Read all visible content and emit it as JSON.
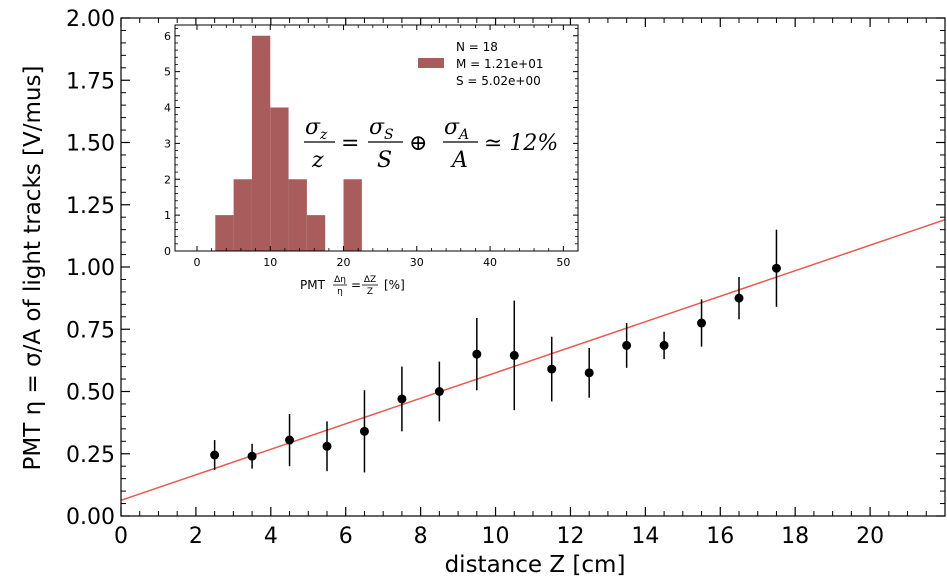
{
  "chart_data": [
    {
      "type": "scatter",
      "xlabel": "distance Z [cm]",
      "ylabel": "PMT η = σ/A of light tracks [V/mus]",
      "xlim": [
        0,
        22
      ],
      "ylim": [
        0,
        2.0
      ],
      "x_ticks": [
        "0",
        "2",
        "4",
        "6",
        "8",
        "10",
        "12",
        "14",
        "16",
        "18",
        "20"
      ],
      "y_ticks": [
        "0.00",
        "0.25",
        "0.50",
        "0.75",
        "1.00",
        "1.25",
        "1.50",
        "1.75",
        "2.00"
      ],
      "grid": false,
      "points": {
        "x": [
          2.5,
          3.5,
          4.5,
          5.5,
          6.5,
          7.5,
          8.5,
          9.5,
          10.5,
          11.5,
          12.5,
          13.5,
          14.5,
          15.5,
          16.5,
          17.5
        ],
        "y": [
          0.245,
          0.24,
          0.305,
          0.28,
          0.34,
          0.47,
          0.5,
          0.65,
          0.645,
          0.59,
          0.575,
          0.685,
          0.685,
          0.775,
          0.875,
          0.995
        ],
        "yerr": [
          0.06,
          0.05,
          0.105,
          0.1,
          0.165,
          0.13,
          0.12,
          0.145,
          0.22,
          0.13,
          0.1,
          0.09,
          0.055,
          0.095,
          0.085,
          0.155
        ],
        "color": "#000000"
      },
      "fit_line": {
        "x": [
          0,
          22
        ],
        "y": [
          0.063,
          1.19
        ],
        "color": "#e8584f"
      }
    },
    {
      "type": "bar",
      "inset": true,
      "xlabel_prefix": "PMT",
      "xlabel_frac1_num": "Δη",
      "xlabel_frac1_den": "η",
      "xlabel_eq": "=",
      "xlabel_frac2_num": "ΔZ",
      "xlabel_frac2_den": "Z",
      "xlabel_suffix": "[%]",
      "xlim": [
        -3,
        52
      ],
      "ylim": [
        0,
        6.3
      ],
      "x_ticks": [
        "0",
        "10",
        "20",
        "30",
        "40",
        "50"
      ],
      "y_ticks": [
        "0",
        "1",
        "2",
        "3",
        "4",
        "5",
        "6"
      ],
      "bin_edges": [
        2.5,
        5,
        7.5,
        10,
        12.5,
        15,
        17.5,
        20,
        22.5,
        25
      ],
      "counts": [
        1,
        2,
        6,
        4,
        2,
        1,
        0,
        2,
        0
      ],
      "color": "#a85c5c",
      "legend": {
        "line1": "N = 18",
        "line2": "M = 1.21e+01",
        "line3": "S = 5.02e+00"
      },
      "formula": "σ_z / z = σ_S / S ⊕ σ_A / A ≃ 12%"
    }
  ],
  "colors": {
    "marker": "#000000",
    "fit": "#e8584f",
    "hist": "#a85c5c"
  }
}
